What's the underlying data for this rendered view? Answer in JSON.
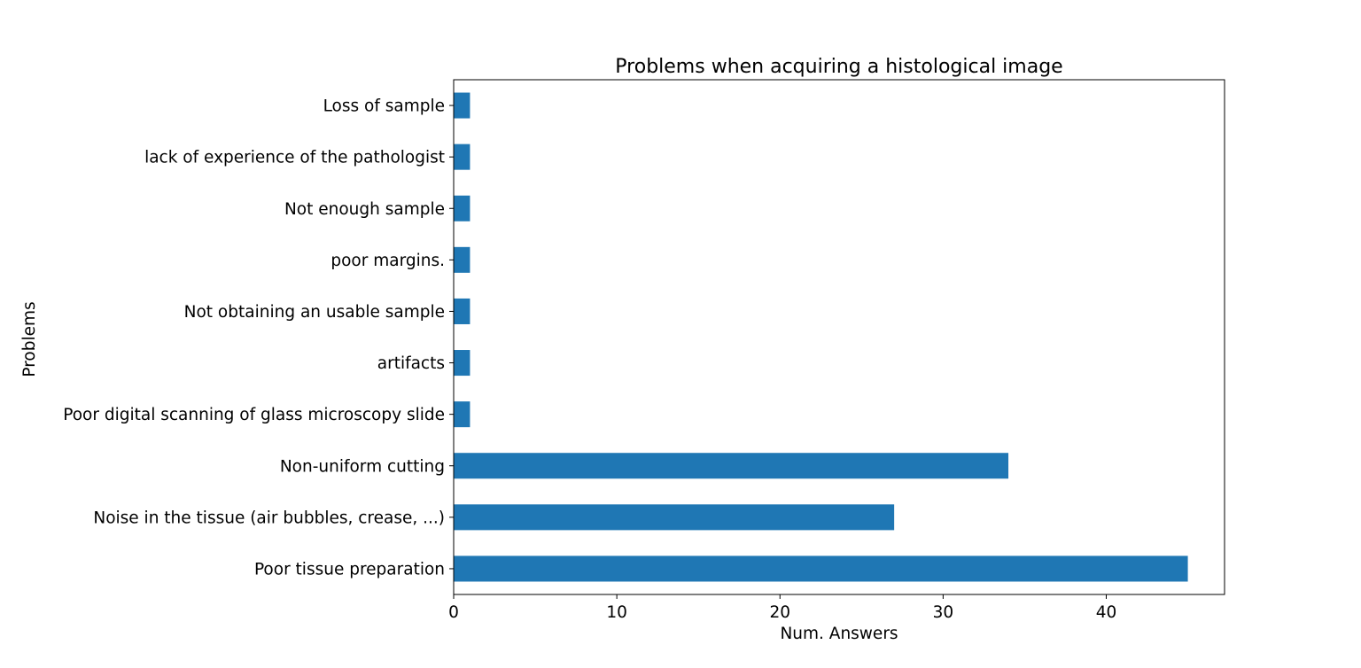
{
  "chart_data": {
    "type": "bar",
    "orientation": "horizontal",
    "title": "Problems when acquiring a histological image",
    "xlabel": "Num. Answers",
    "ylabel": "Problems",
    "categories": [
      "Poor tissue preparation",
      "Noise in the tissue (air bubbles, crease, ...)",
      "Non-uniform cutting",
      "Poor digital scanning of glass microscopy slide",
      "artifacts",
      "Not obtaining an usable sample",
      "poor margins.",
      "Not enough sample",
      "lack of experience of the pathologist",
      "Loss of sample"
    ],
    "values": [
      45,
      27,
      34,
      1,
      1,
      1,
      1,
      1,
      1,
      1
    ],
    "xlim": [
      0,
      47.25
    ],
    "xticks": [
      0,
      10,
      20,
      30,
      40
    ],
    "grid": false,
    "legend": "none",
    "bar_color": "#1f77b4"
  }
}
